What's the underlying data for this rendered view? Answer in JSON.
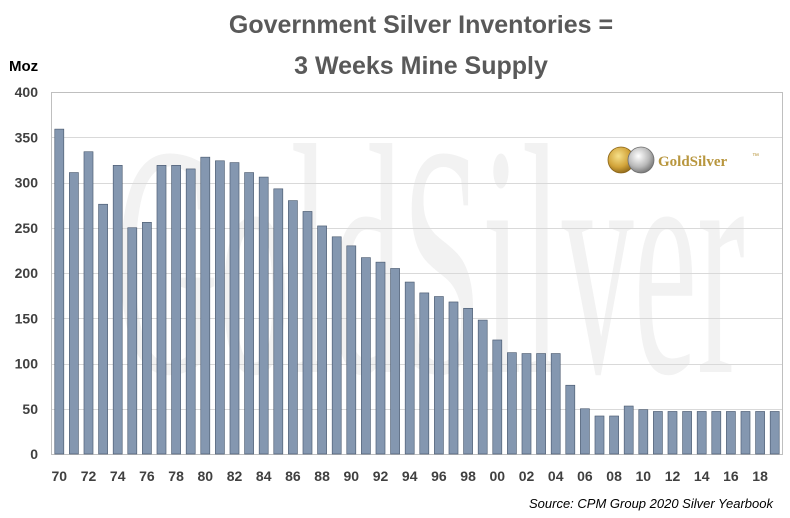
{
  "chart_data": {
    "type": "bar",
    "title_lines": [
      "Government Silver Inventories =",
      "3 Weeks Mine Supply"
    ],
    "ylabel": "Moz",
    "ylim": [
      0,
      400
    ],
    "yticks": [
      0,
      50,
      100,
      150,
      200,
      250,
      300,
      350,
      400
    ],
    "grid": true,
    "categories": [
      "70",
      "71",
      "72",
      "73",
      "74",
      "75",
      "76",
      "77",
      "78",
      "79",
      "80",
      "81",
      "82",
      "83",
      "84",
      "85",
      "86",
      "87",
      "88",
      "89",
      "90",
      "91",
      "92",
      "93",
      "94",
      "95",
      "96",
      "97",
      "98",
      "99",
      "00",
      "01",
      "02",
      "03",
      "04",
      "05",
      "06",
      "07",
      "08",
      "09",
      "10",
      "11",
      "12",
      "13",
      "14",
      "15",
      "16",
      "17",
      "18",
      "19"
    ],
    "tick_labels_shown": [
      "70",
      "72",
      "74",
      "76",
      "78",
      "80",
      "82",
      "84",
      "86",
      "88",
      "90",
      "92",
      "94",
      "96",
      "98",
      "00",
      "02",
      "04",
      "06",
      "08",
      "10",
      "12",
      "14",
      "16",
      "18"
    ],
    "values": [
      359,
      311,
      334,
      276,
      319,
      250,
      256,
      319,
      319,
      315,
      328,
      324,
      322,
      311,
      306,
      293,
      280,
      268,
      252,
      240,
      230,
      217,
      212,
      205,
      190,
      178,
      174,
      168,
      161,
      148,
      126,
      112,
      111,
      111,
      111,
      76,
      50,
      42,
      42,
      53,
      49,
      47,
      47,
      47,
      47,
      47,
      47,
      47,
      47,
      47
    ],
    "source": "Source: CPM Group 2020 Silver Yearbook"
  },
  "logo": {
    "text": "GoldSilver",
    "mark": "™",
    "watermark": "GoldSilver"
  },
  "colors": {
    "bar": "#8497b0",
    "bar_edge": "#44546a",
    "title": "#595959",
    "gold": "#c9a13c"
  }
}
